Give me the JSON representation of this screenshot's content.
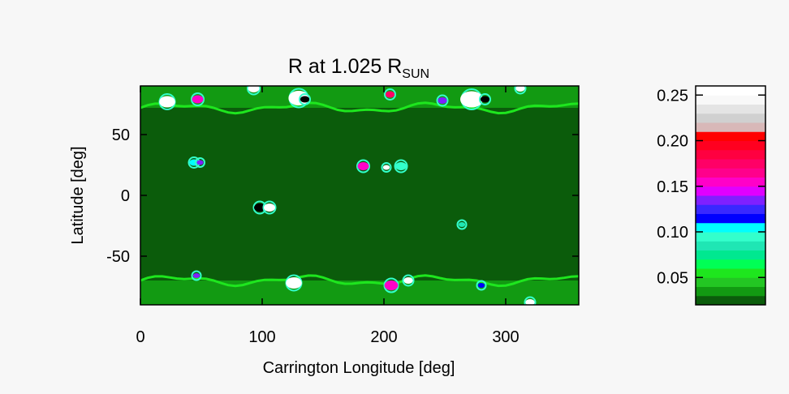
{
  "chart_data": {
    "type": "heatmap",
    "title": "R  at 1.025 R",
    "title_subscript": "SUN",
    "xlabel": "Carrington Longitude [deg]",
    "ylabel": "Latitude [deg]",
    "xlim": [
      0,
      360
    ],
    "ylim": [
      -90,
      90
    ],
    "x_ticks": [
      "0",
      "100",
      "200",
      "300"
    ],
    "y_ticks": [
      "50",
      "0",
      "-50"
    ],
    "x_tick_values": [
      0,
      100,
      200,
      300
    ],
    "y_tick_values": [
      50,
      0,
      -50
    ],
    "background_color": "#0b5c0b",
    "colorbar": {
      "range": [
        0.02,
        0.26
      ],
      "tick_labels": [
        "0.25",
        "0.20",
        "0.15",
        "0.10",
        "0.05"
      ],
      "tick_values": [
        0.25,
        0.2,
        0.15,
        0.1,
        0.05
      ],
      "levels": [
        {
          "value": 0.02,
          "color": "#0b5c0b"
        },
        {
          "value": 0.03,
          "color": "#129a12"
        },
        {
          "value": 0.04,
          "color": "#23c623"
        },
        {
          "value": 0.05,
          "color": "#1ee61e"
        },
        {
          "value": 0.06,
          "color": "#00ff55"
        },
        {
          "value": 0.07,
          "color": "#00e890"
        },
        {
          "value": 0.08,
          "color": "#1fe6b4"
        },
        {
          "value": 0.09,
          "color": "#33ffcc"
        },
        {
          "value": 0.1,
          "color": "#00ffff"
        },
        {
          "value": 0.11,
          "color": "#0000ff"
        },
        {
          "value": 0.12,
          "color": "#3a28ff"
        },
        {
          "value": 0.13,
          "color": "#8020ff"
        },
        {
          "value": 0.14,
          "color": "#e000ff"
        },
        {
          "value": 0.15,
          "color": "#ff00c8"
        },
        {
          "value": 0.16,
          "color": "#ff008c"
        },
        {
          "value": 0.17,
          "color": "#ff0066"
        },
        {
          "value": 0.18,
          "color": "#ff0040"
        },
        {
          "value": 0.19,
          "color": "#ff0020"
        },
        {
          "value": 0.2,
          "color": "#ff0000"
        },
        {
          "value": 0.21,
          "color": "#d8b8b8"
        },
        {
          "value": 0.22,
          "color": "#d0d0d0"
        },
        {
          "value": 0.23,
          "color": "#e4e4e4"
        },
        {
          "value": 0.24,
          "color": "#f8f8f8"
        },
        {
          "value": 0.25,
          "color": "#ffffff"
        }
      ]
    },
    "features": [
      {
        "type": "band",
        "lat_from": 72,
        "lat_to": 90,
        "color": "#129a12"
      },
      {
        "type": "band",
        "lat_from": -90,
        "lat_to": -70,
        "color": "#129a12"
      },
      {
        "type": "spot",
        "lon": 22,
        "lat": 77,
        "r": 7,
        "color": "#ffffff"
      },
      {
        "type": "spot",
        "lon": 47,
        "lat": 79,
        "r": 5,
        "color": "#ff00c8"
      },
      {
        "type": "spot",
        "lon": 130,
        "lat": 80,
        "r": 9,
        "color": "#ffffff"
      },
      {
        "type": "spot",
        "lon": 135,
        "lat": 79,
        "r": 4,
        "color": "#000000"
      },
      {
        "type": "spot",
        "lon": 205,
        "lat": 83,
        "r": 4,
        "color": "#ff0066"
      },
      {
        "type": "spot",
        "lon": 248,
        "lat": 78,
        "r": 4,
        "color": "#8020ff"
      },
      {
        "type": "spot",
        "lon": 272,
        "lat": 79,
        "r": 10,
        "color": "#ffffff"
      },
      {
        "type": "spot",
        "lon": 283,
        "lat": 79,
        "r": 4,
        "color": "#000000"
      },
      {
        "type": "spot",
        "lon": 93,
        "lat": 88,
        "r": 5,
        "color": "#ffffff"
      },
      {
        "type": "spot",
        "lon": 312,
        "lat": 88,
        "r": 4,
        "color": "#ffffff"
      },
      {
        "type": "spot",
        "lon": 44,
        "lat": 27,
        "r": 4,
        "color": "#00ffff"
      },
      {
        "type": "spot",
        "lon": 49,
        "lat": 27,
        "r": 3,
        "color": "#8020ff"
      },
      {
        "type": "spot",
        "lon": 183,
        "lat": 24,
        "r": 5,
        "color": "#ff00c8"
      },
      {
        "type": "spot",
        "lon": 202,
        "lat": 23,
        "r": 3,
        "color": "#ffffff"
      },
      {
        "type": "spot",
        "lon": 214,
        "lat": 24,
        "r": 5,
        "color": "#33ffcc"
      },
      {
        "type": "spot",
        "lon": 98,
        "lat": -10,
        "r": 5,
        "color": "#000000"
      },
      {
        "type": "spot",
        "lon": 106,
        "lat": -10,
        "r": 5,
        "color": "#ffffff"
      },
      {
        "type": "spot",
        "lon": 264,
        "lat": -24,
        "r": 3,
        "color": "#1fe6b4"
      },
      {
        "type": "spot",
        "lon": 46,
        "lat": -66,
        "r": 3,
        "color": "#8020ff"
      },
      {
        "type": "spot",
        "lon": 126,
        "lat": -72,
        "r": 7,
        "color": "#ffffff"
      },
      {
        "type": "spot",
        "lon": 206,
        "lat": -74,
        "r": 6,
        "color": "#ff00c8"
      },
      {
        "type": "spot",
        "lon": 220,
        "lat": -70,
        "r": 4,
        "color": "#ffffff"
      },
      {
        "type": "spot",
        "lon": 280,
        "lat": -74,
        "r": 3,
        "color": "#0000ff"
      },
      {
        "type": "spot",
        "lon": 320,
        "lat": -88,
        "r": 4,
        "color": "#ffffff"
      }
    ]
  }
}
